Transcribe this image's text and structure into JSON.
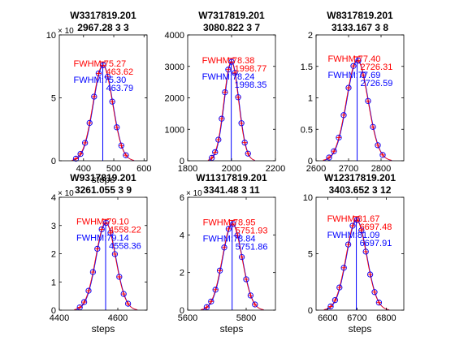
{
  "figure": {
    "background": "#ffffff",
    "colors": {
      "fit": "#ff0000",
      "data": "#0000ff",
      "axes": "#000000"
    }
  },
  "chart_data": [
    {
      "type": "scatter",
      "title": [
        "W3317819.201",
        "2967.28 3 3"
      ],
      "xlabel": "steps",
      "ylabel": "",
      "xlim": [
        320,
        610
      ],
      "ylim": [
        0,
        10
      ],
      "xticks": [
        400,
        500,
        600
      ],
      "yticks": [
        0,
        5,
        10
      ],
      "ymultiplier": "× 10",
      "grid": false,
      "fwhm_fit": {
        "text": "FWHM:75.27",
        "center": "463.62",
        "color": "#ff0000"
      },
      "fwhm_data": {
        "text": "FWHM:75.30",
        "center": "463.79",
        "color": "#0000ff"
      },
      "peak": {
        "x": 463.6,
        "y": 7.6,
        "sigma": 32
      },
      "points_x": [
        375,
        390,
        405,
        420,
        435,
        450,
        465,
        480,
        495,
        510,
        525,
        540
      ]
    },
    {
      "type": "scatter",
      "title": [
        "W7317819.201",
        "3080.822 3 7"
      ],
      "xlabel": "",
      "ylabel": "",
      "xlim": [
        1800,
        2200
      ],
      "ylim": [
        0,
        4000
      ],
      "xticks": [
        1800,
        2000,
        2200
      ],
      "yticks": [
        0,
        1000,
        2000,
        3000,
        4000
      ],
      "ymultiplier": "",
      "grid": false,
      "fwhm_fit": {
        "text": "FWHM:78.38",
        "center": "1998.77",
        "color": "#ff0000"
      },
      "fwhm_data": {
        "text": "FWHM:78.24",
        "center": "1998.35",
        "color": "#0000ff"
      },
      "peak": {
        "x": 1998.6,
        "y": 3150,
        "sigma": 33.3
      },
      "points_x": [
        1910,
        1925,
        1940,
        1955,
        1970,
        1985,
        2000,
        2015,
        2030,
        2045,
        2060,
        2075
      ]
    },
    {
      "type": "scatter",
      "title": [
        "W8317819.201",
        "3133.167 3 8"
      ],
      "xlabel": "",
      "ylabel": "",
      "xlim": [
        2600,
        2870
      ],
      "ylim": [
        0,
        2
      ],
      "xticks": [
        2600,
        2700,
        2800
      ],
      "yticks": [
        0,
        0.5,
        1,
        1.5,
        2
      ],
      "ymultiplier": "",
      "grid": false,
      "fwhm_fit": {
        "text": "FWHM:77.40",
        "center": "2726.31",
        "color": "#ff0000"
      },
      "fwhm_data": {
        "text": "FWHM:77.69",
        "center": "2726.59",
        "color": "#0000ff"
      },
      "peak": {
        "x": 2726.4,
        "y": 1.6,
        "sigma": 32.9
      },
      "points_x": [
        2640,
        2655,
        2670,
        2685,
        2700,
        2715,
        2730,
        2745,
        2760,
        2775,
        2790,
        2805
      ]
    },
    {
      "type": "scatter",
      "title": [
        "W9317819.201",
        "3261.055 3 9"
      ],
      "xlabel": "steps",
      "ylabel": "",
      "xlim": [
        4400,
        4700
      ],
      "ylim": [
        0,
        4
      ],
      "xticks": [
        4400,
        4600
      ],
      "yticks": [
        0,
        1,
        2,
        3,
        4
      ],
      "ymultiplier": "× 10",
      "grid": false,
      "fwhm_fit": {
        "text": "FWHM:79.10",
        "center": "4558.22",
        "color": "#ff0000"
      },
      "fwhm_data": {
        "text": "FWHM:79.14",
        "center": "4558.36",
        "color": "#0000ff"
      },
      "peak": {
        "x": 4558.3,
        "y": 3.1,
        "sigma": 33.6
      },
      "points_x": [
        4470,
        4485,
        4500,
        4515,
        4530,
        4545,
        4560,
        4575,
        4590,
        4605,
        4620,
        4635
      ]
    },
    {
      "type": "scatter",
      "title": [
        "W11317819.201",
        "3341.48 3 11"
      ],
      "xlabel": "steps",
      "ylabel": "",
      "xlim": [
        5600,
        5900
      ],
      "ylim": [
        0,
        6
      ],
      "xticks": [
        5600,
        5800
      ],
      "yticks": [
        0,
        2,
        4,
        6
      ],
      "ymultiplier": "× 10",
      "grid": false,
      "fwhm_fit": {
        "text": "FWHM:78.95",
        "center": "5751.93",
        "color": "#ff0000"
      },
      "fwhm_data": {
        "text": "FWHM:78.84",
        "center": "5751.86",
        "color": "#0000ff"
      },
      "peak": {
        "x": 5751.9,
        "y": 4.6,
        "sigma": 33.5
      },
      "points_x": [
        5665,
        5680,
        5695,
        5710,
        5725,
        5740,
        5755,
        5770,
        5785,
        5800,
        5815,
        5830
      ]
    },
    {
      "type": "scatter",
      "title": [
        "W12317819.201",
        "3403.652 3 12"
      ],
      "xlabel": "steps",
      "ylabel": "",
      "xlim": [
        6560,
        6860
      ],
      "ylim": [
        0,
        10
      ],
      "xticks": [
        6600,
        6700,
        6800
      ],
      "yticks": [
        0,
        5,
        10
      ],
      "ymultiplier": "",
      "grid": false,
      "fwhm_fit": {
        "text": "FWHM:81.67",
        "center": "6697.48",
        "color": "#ff0000"
      },
      "fwhm_data": {
        "text": "FWHM:81.09",
        "center": "6697.91",
        "color": "#0000ff"
      },
      "peak": {
        "x": 6697.7,
        "y": 8.0,
        "sigma": 34.7
      },
      "points_x": [
        6610,
        6625,
        6640,
        6655,
        6670,
        6685,
        6700,
        6715,
        6730,
        6745,
        6760,
        6775
      ]
    }
  ]
}
